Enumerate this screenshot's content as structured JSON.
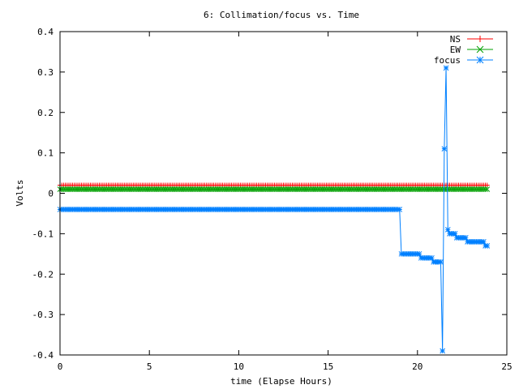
{
  "chart_data": {
    "type": "line",
    "title": "6: Collimation/focus vs. Time",
    "xlabel": "time (Elapse Hours)",
    "ylabel": "Volts",
    "xlim": [
      0,
      25
    ],
    "ylim": [
      -0.4,
      0.4
    ],
    "xticks": [
      0,
      5,
      10,
      15,
      20,
      25
    ],
    "xtick_labels": [
      "0",
      "5",
      "10",
      "15",
      "20",
      "25"
    ],
    "yticks": [
      -0.4,
      -0.3,
      -0.2,
      -0.1,
      0,
      0.1,
      0.2,
      0.3,
      0.4
    ],
    "ytick_labels": [
      "-0.4",
      "-0.3",
      "-0.2",
      "-0.1",
      "0",
      "0.1",
      "0.2",
      "0.3",
      "0.4"
    ],
    "grid": false,
    "legend_position": "top-right",
    "series": [
      {
        "name": "NS",
        "color": "#ff0000",
        "marker": "plus",
        "segments": [
          {
            "x_start": 0,
            "x_end": 23.9,
            "step": 0.1,
            "y": 0.02
          }
        ]
      },
      {
        "name": "EW",
        "color": "#00a000",
        "marker": "cross",
        "segments": [
          {
            "x_start": 0,
            "x_end": 23.9,
            "step": 0.1,
            "y": 0.01
          }
        ]
      },
      {
        "name": "focus",
        "color": "#0080ff",
        "marker": "star",
        "segments": [
          {
            "x_start": 0,
            "x_end": 19.0,
            "step": 0.1,
            "y": -0.04
          },
          {
            "x_start": 19.1,
            "x_end": 20.1,
            "step": 0.1,
            "y": -0.15
          },
          {
            "x_start": 20.2,
            "x_end": 20.8,
            "step": 0.1,
            "y": -0.16
          },
          {
            "x_start": 20.9,
            "x_end": 21.3,
            "step": 0.1,
            "y": -0.17
          }
        ],
        "points": [
          [
            21.4,
            -0.39
          ],
          [
            21.5,
            0.11
          ],
          [
            21.6,
            0.31
          ],
          [
            21.7,
            -0.09
          ],
          [
            21.8,
            -0.1
          ],
          [
            21.9,
            -0.1
          ],
          [
            22.0,
            -0.1
          ],
          [
            22.1,
            -0.1
          ],
          [
            22.2,
            -0.11
          ],
          [
            22.3,
            -0.11
          ],
          [
            22.4,
            -0.11
          ],
          [
            22.5,
            -0.11
          ],
          [
            22.6,
            -0.11
          ],
          [
            22.7,
            -0.11
          ],
          [
            22.8,
            -0.12
          ],
          [
            22.9,
            -0.12
          ],
          [
            23.0,
            -0.12
          ],
          [
            23.1,
            -0.12
          ],
          [
            23.2,
            -0.12
          ],
          [
            23.3,
            -0.12
          ],
          [
            23.4,
            -0.12
          ],
          [
            23.5,
            -0.12
          ],
          [
            23.6,
            -0.12
          ],
          [
            23.7,
            -0.12
          ],
          [
            23.8,
            -0.13
          ],
          [
            23.9,
            -0.13
          ]
        ]
      }
    ]
  }
}
